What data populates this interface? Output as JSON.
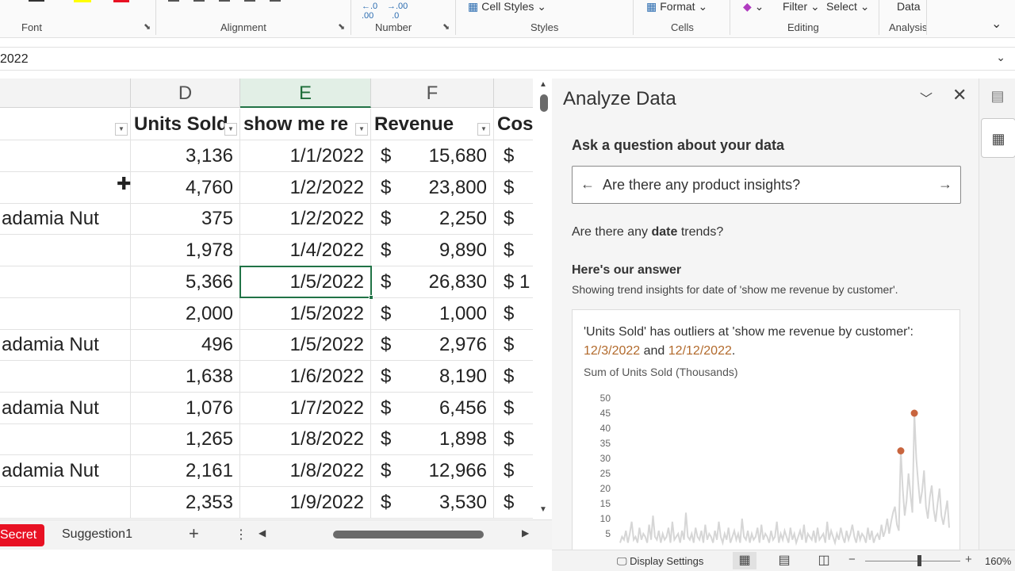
{
  "ribbon": {
    "groups": [
      "Font",
      "Alignment",
      "Number",
      "Styles",
      "Cells",
      "Editing",
      "Analysis"
    ],
    "cell_styles": "Cell Styles",
    "format": "Format",
    "filter": "Filter",
    "select": "Select",
    "data": "Data",
    "colors": {
      "highlight": "#ffff00",
      "font": "#e81123"
    }
  },
  "formula_bar": {
    "value": "2022"
  },
  "grid": {
    "columns": [
      "D",
      "E",
      "F"
    ],
    "headers": [
      "Units Sold",
      "show me re",
      "Revenue",
      "Cos"
    ],
    "rows": [
      {
        "c": "",
        "d": "3,136",
        "e": "1/1/2022",
        "cur": "$",
        "f": "15,680",
        "g": "$"
      },
      {
        "c": "",
        "d": "4,760",
        "e": "1/2/2022",
        "cur": "$",
        "f": "23,800",
        "g": "$"
      },
      {
        "c": "adamia Nut",
        "d": "375",
        "e": "1/2/2022",
        "cur": "$",
        "f": "2,250",
        "g": "$"
      },
      {
        "c": "",
        "d": "1,978",
        "e": "1/4/2022",
        "cur": "$",
        "f": "9,890",
        "g": "$"
      },
      {
        "c": "",
        "d": "5,366",
        "e": "1/5/2022",
        "cur": "$",
        "f": "26,830",
        "g": "$ 1"
      },
      {
        "c": "",
        "d": "2,000",
        "e": "1/5/2022",
        "cur": "$",
        "f": "1,000",
        "g": "$"
      },
      {
        "c": "adamia Nut",
        "d": "496",
        "e": "1/5/2022",
        "cur": "$",
        "f": "2,976",
        "g": "$"
      },
      {
        "c": "",
        "d": "1,638",
        "e": "1/6/2022",
        "cur": "$",
        "f": "8,190",
        "g": "$"
      },
      {
        "c": "adamia Nut",
        "d": "1,076",
        "e": "1/7/2022",
        "cur": "$",
        "f": "6,456",
        "g": "$"
      },
      {
        "c": "",
        "d": "1,265",
        "e": "1/8/2022",
        "cur": "$",
        "f": "1,898",
        "g": "$"
      },
      {
        "c": "adamia Nut",
        "d": "2,161",
        "e": "1/8/2022",
        "cur": "$",
        "f": "12,966",
        "g": "$"
      },
      {
        "c": "",
        "d": "2,353",
        "e": "1/9/2022",
        "cur": "$",
        "f": "3,530",
        "g": "$"
      }
    ]
  },
  "sheet_tabs": {
    "active": "Secret",
    "other": "Suggestion1",
    "add": "+",
    "more": "⋮"
  },
  "status": {
    "display_settings": "Display Settings",
    "zoom": "160%",
    "zoom_level": 0.55
  },
  "pane": {
    "title": "Analyze Data",
    "ask_label": "Ask a question about your data",
    "query_value": "Are there any product insights?",
    "suggest_prefix": "Are there any ",
    "suggest_bold": "date",
    "suggest_suffix": " trends?",
    "answer_heading": "Here's our answer",
    "answer_sub": "Showing trend insights for date of 'show me revenue by customer'.",
    "insight_text": "'Units Sold' has outliers at 'show me revenue by customer':",
    "insight_date1": "12/3/2022",
    "insight_and": " and ",
    "insight_date2": "12/12/2022",
    "insight_end": "."
  },
  "chart_data": {
    "type": "line",
    "title": "Sum of Units Sold (Thousands)",
    "ylim": [
      0,
      50
    ],
    "yticks": [
      5,
      10,
      15,
      20,
      25,
      30,
      35,
      40,
      45,
      50
    ],
    "series_color": "#d6d6d6",
    "outlier_color": "#c8653e",
    "outliers": [
      {
        "x": "12/3/2022",
        "y": 32.5
      },
      {
        "x": "12/12/2022",
        "y": 45
      }
    ],
    "values": [
      2,
      4,
      3,
      6,
      2,
      5,
      9,
      3,
      4,
      2,
      7,
      3,
      5,
      4,
      2,
      8,
      3,
      11,
      4,
      3,
      6,
      2,
      5,
      3,
      4,
      7,
      2,
      9,
      3,
      4,
      5,
      2,
      6,
      3,
      12,
      4,
      3,
      5,
      2,
      7,
      4,
      3,
      6,
      2,
      8,
      3,
      5,
      4,
      2,
      6,
      3,
      9,
      4,
      2,
      5,
      3,
      7,
      2,
      4,
      6,
      3,
      5,
      2,
      10,
      4,
      3,
      6,
      2,
      5,
      3,
      4,
      7,
      2,
      8,
      3,
      5,
      4,
      2,
      6,
      3,
      4,
      9,
      2,
      5,
      3,
      6,
      4,
      2,
      7,
      3,
      5,
      2,
      4,
      6,
      3,
      8,
      2,
      5,
      4,
      3,
      6,
      2,
      7,
      3,
      4,
      5,
      2,
      9,
      3,
      6,
      4,
      2,
      5,
      3,
      7,
      4,
      2,
      6,
      3,
      5,
      8,
      4,
      2,
      6,
      3,
      5,
      4,
      2,
      7,
      3,
      6,
      2,
      4,
      5,
      3,
      8,
      4,
      6,
      10,
      5,
      9,
      12,
      14,
      8,
      6,
      32.5,
      20,
      11,
      16,
      25,
      18,
      12,
      45,
      30,
      22,
      15,
      19,
      26,
      14,
      10,
      17,
      21,
      13,
      9,
      15,
      20,
      11,
      8,
      12,
      16,
      7
    ]
  }
}
